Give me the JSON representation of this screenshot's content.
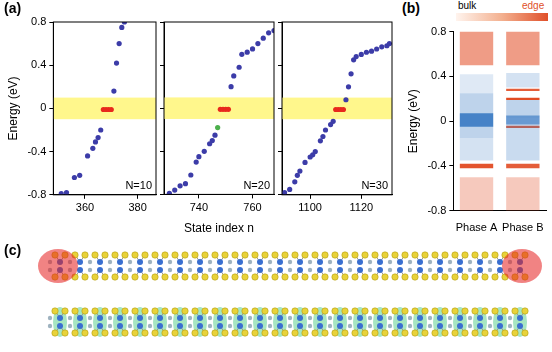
{
  "panel_labels": [
    "(a)",
    "(b)",
    "(c)"
  ],
  "chart_data": [
    {
      "type": "scatter",
      "annotation": "N=10",
      "y_label": "Energy (eV)",
      "xlim": [
        348,
        387
      ],
      "xticks": [
        360,
        380
      ],
      "ylim": [
        -0.8,
        0.8
      ],
      "yticks": [
        -0.8,
        -0.4,
        0,
        0.4,
        0.8
      ],
      "grid": false,
      "band": {
        "ymin": -0.1,
        "ymax": 0.1,
        "color": "#fff78c"
      },
      "series": [
        {
          "color": "#3c3ca8",
          "marker": "circle",
          "x": [
            351,
            353,
            356,
            358,
            361,
            363,
            364,
            365,
            366,
            371,
            372,
            373,
            374,
            375
          ],
          "values": [
            -0.79,
            -0.78,
            -0.64,
            -0.62,
            -0.44,
            -0.37,
            -0.31,
            -0.27,
            -0.2,
            0.16,
            0.42,
            0.6,
            0.75,
            0.8
          ]
        },
        {
          "color": "#e8291c",
          "marker": "circle",
          "x": [
            367,
            368,
            369,
            370
          ],
          "values": [
            -0.01,
            -0.01,
            -0.01,
            -0.01
          ]
        }
      ]
    },
    {
      "type": "scatter",
      "annotation": "N=20",
      "x_label": "State index n",
      "tick_labels": "x",
      "xlim": [
        727,
        768
      ],
      "xticks": [
        740,
        760
      ],
      "ylim": [
        -0.8,
        0.8
      ],
      "yticks": [
        -0.8,
        -0.4,
        0,
        0.4,
        0.8
      ],
      "grid": false,
      "band": {
        "ymin": -0.1,
        "ymax": 0.1,
        "color": "#fff78c"
      },
      "series": [
        {
          "color": "#3c3ca8",
          "marker": "circle",
          "x": [
            729,
            731,
            733,
            735,
            737,
            739,
            740,
            742,
            744,
            745,
            746,
            752,
            753,
            755,
            756,
            758,
            760,
            762,
            764,
            766,
            768
          ],
          "values": [
            -0.79,
            -0.76,
            -0.72,
            -0.7,
            -0.62,
            -0.5,
            -0.45,
            -0.4,
            -0.33,
            -0.3,
            -0.25,
            0.2,
            0.3,
            0.38,
            0.5,
            0.52,
            0.55,
            0.6,
            0.65,
            0.7,
            0.72
          ]
        },
        {
          "color": "#4cb04c",
          "marker": "circle",
          "x": [
            747
          ],
          "values": [
            -0.18
          ]
        },
        {
          "color": "#e8291c",
          "marker": "circle",
          "x": [
            748,
            749,
            750,
            751
          ],
          "values": [
            -0.01,
            -0.01,
            -0.01,
            -0.01
          ]
        }
      ]
    },
    {
      "type": "scatter",
      "annotation": "N=30",
      "tick_labels": "x",
      "xlim": [
        1089,
        1132
      ],
      "xticks": [
        1100,
        1120
      ],
      "ylim": [
        -0.8,
        0.8
      ],
      "yticks": [
        -0.8,
        -0.4,
        0,
        0.4,
        0.8
      ],
      "grid": false,
      "band": {
        "ymin": -0.1,
        "ymax": 0.1,
        "color": "#fff78c"
      },
      "series": [
        {
          "color": "#3c3ca8",
          "marker": "circle",
          "x": [
            1090,
            1092,
            1094,
            1095,
            1096,
            1098,
            1100,
            1101,
            1102,
            1104,
            1105,
            1106,
            1108,
            1109,
            1114,
            1115,
            1116,
            1117,
            1118,
            1120,
            1122,
            1124,
            1126,
            1128,
            1130,
            1131
          ],
          "values": [
            -0.78,
            -0.75,
            -0.68,
            -0.62,
            -0.58,
            -0.5,
            -0.45,
            -0.43,
            -0.4,
            -0.3,
            -0.26,
            -0.2,
            -0.15,
            -0.12,
            0.08,
            0.2,
            0.32,
            0.45,
            0.48,
            0.5,
            0.52,
            0.53,
            0.55,
            0.57,
            0.58,
            0.6
          ]
        },
        {
          "color": "#e8291c",
          "marker": "circle",
          "x": [
            1110,
            1111,
            1112,
            1113
          ],
          "values": [
            -0.01,
            -0.01,
            -0.01,
            -0.01
          ]
        }
      ]
    },
    {
      "type": "bar",
      "y_label": "Energy (eV)",
      "categories": [
        "Phase A",
        "Phase B"
      ],
      "ylim": [
        -0.8,
        0.8
      ],
      "yticks": [
        -0.8,
        -0.4,
        0,
        0.4,
        0.8
      ],
      "grid": false,
      "colorbar": {
        "low_label": "bulk",
        "high_label": "edge"
      },
      "segments": [
        {
          "category": "Phase A",
          "kind": "bulk",
          "ymin": 0.25,
          "ymax": 0.42,
          "weight": 0.15
        },
        {
          "category": "Phase A",
          "kind": "bulk",
          "ymin": -0.15,
          "ymax": 0.25,
          "weight": 0.3
        },
        {
          "category": "Phase A",
          "kind": "bulk",
          "ymin": -0.05,
          "ymax": 0.07,
          "weight": 0.8
        },
        {
          "category": "Phase A",
          "kind": "bulk",
          "ymin": -0.35,
          "ymax": -0.15,
          "weight": 0.2
        },
        {
          "category": "Phase A",
          "kind": "edge",
          "ymin": 0.5,
          "ymax": 0.8,
          "weight": 0.55
        },
        {
          "category": "Phase A",
          "kind": "edge",
          "ymin": -0.42,
          "ymax": -0.38,
          "weight": 0.95
        },
        {
          "category": "Phase A",
          "kind": "edge",
          "ymin": -0.8,
          "ymax": -0.5,
          "weight": 0.3
        },
        {
          "category": "Phase B",
          "kind": "bulk",
          "ymin": 0.3,
          "ymax": 0.43,
          "weight": 0.2
        },
        {
          "category": "Phase B",
          "kind": "bulk",
          "ymin": 0.03,
          "ymax": 0.19,
          "weight": 0.3
        },
        {
          "category": "Phase B",
          "kind": "bulk",
          "ymin": -0.35,
          "ymax": 0.03,
          "weight": 0.25
        },
        {
          "category": "Phase B",
          "kind": "bulk",
          "ymin": -0.03,
          "ymax": 0.05,
          "weight": 0.6
        },
        {
          "category": "Phase B",
          "kind": "edge",
          "ymin": 0.5,
          "ymax": 0.8,
          "weight": 0.55
        },
        {
          "category": "Phase B",
          "kind": "edge",
          "ymin": 0.27,
          "ymax": 0.29,
          "weight": 0.9
        },
        {
          "category": "Phase B",
          "kind": "edge",
          "ymin": 0.19,
          "ymax": 0.21,
          "weight": 1.0
        },
        {
          "category": "Phase B",
          "kind": "edge",
          "ymin": -0.06,
          "ymax": -0.04,
          "weight": 0.9
        },
        {
          "category": "Phase B",
          "kind": "edge",
          "ymin": -0.42,
          "ymax": -0.38,
          "weight": 0.9
        },
        {
          "category": "Phase B",
          "kind": "edge",
          "ymin": -0.8,
          "ymax": -0.5,
          "weight": 0.3
        }
      ]
    }
  ]
}
